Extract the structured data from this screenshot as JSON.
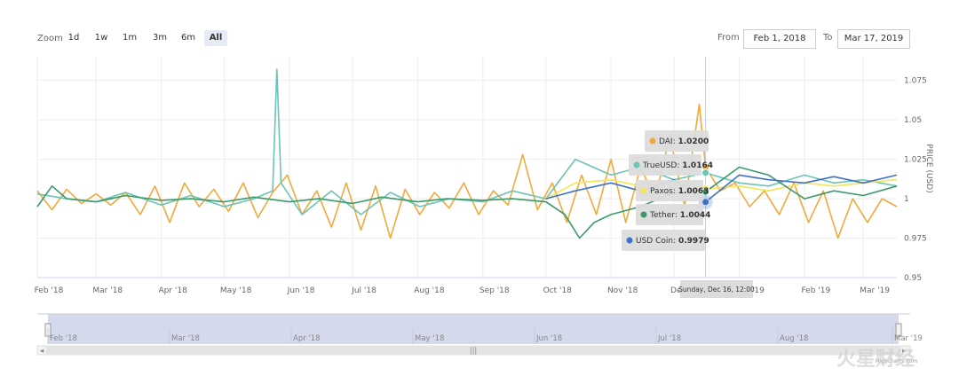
{
  "toolbar": {
    "zoom_label": "Zoom",
    "zoom_buttons": [
      "1d",
      "1w",
      "1m",
      "3m",
      "6m",
      "All"
    ],
    "active_zoom": "All",
    "from_label": "From",
    "from_value": "Feb 1, 2018",
    "to_label": "To",
    "to_value": "Mar 17, 2019"
  },
  "chart_data": {
    "type": "line",
    "title": "",
    "xlabel": "",
    "ylabel": "PRICE (USD)",
    "x_range": [
      "2018-02-01",
      "2019-03-17"
    ],
    "ylim": [
      0.95,
      1.09
    ],
    "y_ticks": [
      {
        "value": 0.95,
        "label": "0.95"
      },
      {
        "value": 0.975,
        "label": "0.975"
      },
      {
        "value": 1.0,
        "label": "1"
      },
      {
        "value": 1.025,
        "label": "1.025"
      },
      {
        "value": 1.05,
        "label": "1.05"
      },
      {
        "value": 1.075,
        "label": "1.075"
      }
    ],
    "x_ticks": [
      {
        "date": "2018-02-01",
        "label": "Feb '18"
      },
      {
        "date": "2018-03-01",
        "label": "Mar '18"
      },
      {
        "date": "2018-04-01",
        "label": "Apr '18"
      },
      {
        "date": "2018-05-01",
        "label": "May '18"
      },
      {
        "date": "2018-06-01",
        "label": "Jun '18"
      },
      {
        "date": "2018-07-01",
        "label": "Jul '18"
      },
      {
        "date": "2018-08-01",
        "label": "Aug '18"
      },
      {
        "date": "2018-09-01",
        "label": "Sep '18"
      },
      {
        "date": "2018-10-01",
        "label": "Oct '18"
      },
      {
        "date": "2018-11-01",
        "label": "Nov '18"
      },
      {
        "date": "2018-12-01",
        "label": "Dec '18"
      },
      {
        "date": "2019-01-01",
        "label": "Jan '19"
      },
      {
        "date": "2019-02-01",
        "label": "Feb '19"
      },
      {
        "date": "2019-03-01",
        "label": "Mar '19"
      }
    ],
    "grid": true,
    "series": [
      {
        "name": "DAI",
        "color": "#f2a93b",
        "points": [
          [
            "2018-02-01",
            1.005
          ],
          [
            "2018-02-08",
            0.993
          ],
          [
            "2018-02-15",
            1.006
          ],
          [
            "2018-02-22",
            0.997
          ],
          [
            "2018-03-01",
            1.003
          ],
          [
            "2018-03-08",
            0.996
          ],
          [
            "2018-03-15",
            1.004
          ],
          [
            "2018-03-22",
            0.99
          ],
          [
            "2018-03-29",
            1.008
          ],
          [
            "2018-04-05",
            0.985
          ],
          [
            "2018-04-12",
            1.01
          ],
          [
            "2018-04-19",
            0.995
          ],
          [
            "2018-04-26",
            1.006
          ],
          [
            "2018-05-03",
            0.992
          ],
          [
            "2018-05-10",
            1.01
          ],
          [
            "2018-05-17",
            0.988
          ],
          [
            "2018-05-24",
            1.004
          ],
          [
            "2018-05-31",
            1.015
          ],
          [
            "2018-06-07",
            0.99
          ],
          [
            "2018-06-14",
            1.005
          ],
          [
            "2018-06-21",
            0.982
          ],
          [
            "2018-06-28",
            1.01
          ],
          [
            "2018-07-05",
            0.98
          ],
          [
            "2018-07-12",
            1.008
          ],
          [
            "2018-07-19",
            0.975
          ],
          [
            "2018-07-26",
            1.006
          ],
          [
            "2018-08-02",
            0.99
          ],
          [
            "2018-08-09",
            1.004
          ],
          [
            "2018-08-16",
            0.994
          ],
          [
            "2018-08-23",
            1.01
          ],
          [
            "2018-08-30",
            0.99
          ],
          [
            "2018-09-06",
            1.005
          ],
          [
            "2018-09-13",
            0.996
          ],
          [
            "2018-09-20",
            1.028
          ],
          [
            "2018-09-27",
            0.993
          ],
          [
            "2018-10-04",
            1.01
          ],
          [
            "2018-10-11",
            0.985
          ],
          [
            "2018-10-18",
            1.015
          ],
          [
            "2018-10-25",
            0.99
          ],
          [
            "2018-11-01",
            1.025
          ],
          [
            "2018-11-08",
            0.985
          ],
          [
            "2018-11-15",
            1.02
          ],
          [
            "2018-11-22",
            1.0
          ],
          [
            "2018-11-29",
            1.04
          ],
          [
            "2018-12-06",
            0.995
          ],
          [
            "2018-12-13",
            1.06
          ],
          [
            "2018-12-16",
            1.02
          ],
          [
            "2018-12-23",
            1.005
          ],
          [
            "2018-12-30",
            1.01
          ],
          [
            "2019-01-06",
            0.995
          ],
          [
            "2019-01-13",
            1.005
          ],
          [
            "2019-01-20",
            0.99
          ],
          [
            "2019-01-27",
            1.01
          ],
          [
            "2019-02-03",
            0.985
          ],
          [
            "2019-02-10",
            1.005
          ],
          [
            "2019-02-17",
            0.975
          ],
          [
            "2019-02-24",
            1.0
          ],
          [
            "2019-03-03",
            0.985
          ],
          [
            "2019-03-10",
            1.0
          ],
          [
            "2019-03-17",
            0.995
          ]
        ]
      },
      {
        "name": "TrueUSD",
        "color": "#6cc4b4",
        "points": [
          [
            "2018-02-01",
            1.003
          ],
          [
            "2018-02-15",
            1.0
          ],
          [
            "2018-03-01",
            0.998
          ],
          [
            "2018-03-15",
            1.004
          ],
          [
            "2018-04-01",
            0.996
          ],
          [
            "2018-04-15",
            1.002
          ],
          [
            "2018-05-01",
            0.995
          ],
          [
            "2018-05-15",
            1.0
          ],
          [
            "2018-05-24",
            1.005
          ],
          [
            "2018-05-26",
            1.082
          ],
          [
            "2018-05-28",
            1.01
          ],
          [
            "2018-06-07",
            0.99
          ],
          [
            "2018-06-21",
            1.005
          ],
          [
            "2018-07-05",
            0.99
          ],
          [
            "2018-07-19",
            1.004
          ],
          [
            "2018-08-02",
            0.995
          ],
          [
            "2018-08-16",
            1.0
          ],
          [
            "2018-09-01",
            0.998
          ],
          [
            "2018-09-15",
            1.005
          ],
          [
            "2018-10-01",
            1.0
          ],
          [
            "2018-10-15",
            1.025
          ],
          [
            "2018-11-01",
            1.015
          ],
          [
            "2018-11-15",
            1.02
          ],
          [
            "2018-12-01",
            1.012
          ],
          [
            "2018-12-16",
            1.0164
          ],
          [
            "2019-01-01",
            1.01
          ],
          [
            "2019-01-15",
            1.008
          ],
          [
            "2019-02-01",
            1.015
          ],
          [
            "2019-02-15",
            1.01
          ],
          [
            "2019-03-01",
            1.012
          ],
          [
            "2019-03-17",
            1.008
          ]
        ]
      },
      {
        "name": "Paxos",
        "color": "#f3e45a",
        "points": [
          [
            "2018-10-01",
            1.0
          ],
          [
            "2018-10-15",
            1.01
          ],
          [
            "2018-11-01",
            1.012
          ],
          [
            "2018-11-15",
            1.008
          ],
          [
            "2018-12-01",
            1.01
          ],
          [
            "2018-12-16",
            1.0063
          ],
          [
            "2019-01-01",
            1.008
          ],
          [
            "2019-01-15",
            1.005
          ],
          [
            "2019-02-01",
            1.01
          ],
          [
            "2019-02-15",
            1.008
          ],
          [
            "2019-03-01",
            1.01
          ],
          [
            "2019-03-17",
            1.012
          ]
        ]
      },
      {
        "name": "Tether",
        "color": "#3a9a6a",
        "points": [
          [
            "2018-02-01",
            0.995
          ],
          [
            "2018-02-08",
            1.008
          ],
          [
            "2018-02-15",
            1.0
          ],
          [
            "2018-03-01",
            0.998
          ],
          [
            "2018-03-15",
            1.002
          ],
          [
            "2018-04-01",
            0.999
          ],
          [
            "2018-04-15",
            1.0
          ],
          [
            "2018-05-01",
            0.998
          ],
          [
            "2018-05-15",
            1.001
          ],
          [
            "2018-06-01",
            0.998
          ],
          [
            "2018-06-15",
            1.0
          ],
          [
            "2018-07-01",
            0.997
          ],
          [
            "2018-07-15",
            1.001
          ],
          [
            "2018-08-01",
            0.998
          ],
          [
            "2018-08-15",
            1.0
          ],
          [
            "2018-09-01",
            0.999
          ],
          [
            "2018-09-15",
            1.0
          ],
          [
            "2018-10-01",
            0.998
          ],
          [
            "2018-10-10",
            0.99
          ],
          [
            "2018-10-17",
            0.975
          ],
          [
            "2018-10-24",
            0.985
          ],
          [
            "2018-11-01",
            0.99
          ],
          [
            "2018-11-15",
            0.995
          ],
          [
            "2018-12-01",
            1.004
          ],
          [
            "2018-12-16",
            1.0044
          ],
          [
            "2019-01-01",
            1.02
          ],
          [
            "2019-01-15",
            1.015
          ],
          [
            "2019-02-01",
            1.0
          ],
          [
            "2019-02-15",
            1.005
          ],
          [
            "2019-03-01",
            1.002
          ],
          [
            "2019-03-17",
            1.008
          ]
        ]
      },
      {
        "name": "USD Coin",
        "color": "#3f72c4",
        "points": [
          [
            "2018-10-01",
            1.0
          ],
          [
            "2018-10-15",
            1.005
          ],
          [
            "2018-11-01",
            1.01
          ],
          [
            "2018-11-15",
            1.005
          ],
          [
            "2018-12-01",
            1.012
          ],
          [
            "2018-12-16",
            0.9979
          ],
          [
            "2019-01-01",
            1.015
          ],
          [
            "2019-01-15",
            1.012
          ],
          [
            "2019-02-01",
            1.01
          ],
          [
            "2019-02-15",
            1.014
          ],
          [
            "2019-03-01",
            1.01
          ],
          [
            "2019-03-17",
            1.015
          ]
        ]
      }
    ],
    "tooltip": {
      "date_label": "Sunday, Dec 16, 12:00",
      "date": "2018-12-16",
      "rows": [
        {
          "name": "DAI",
          "value": "1.0200",
          "color": "#f2a93b"
        },
        {
          "name": "TrueUSD",
          "value": "1.0164",
          "color": "#6cc4b4"
        },
        {
          "name": "Paxos",
          "value": "1.0063",
          "color": "#f3e45a"
        },
        {
          "name": "Tether",
          "value": "1.0044",
          "color": "#3a9a6a"
        },
        {
          "name": "USD Coin",
          "value": "0.9979",
          "color": "#3f72c4"
        }
      ]
    },
    "navigator": {
      "labels": [
        "Feb '18",
        "Mar '18",
        "Apr '18",
        "May '18",
        "Jun '18",
        "Jul '18",
        "Aug '18",
        "Mar '19"
      ]
    },
    "credits": "Highcharts.com",
    "watermark": "火星财经"
  }
}
